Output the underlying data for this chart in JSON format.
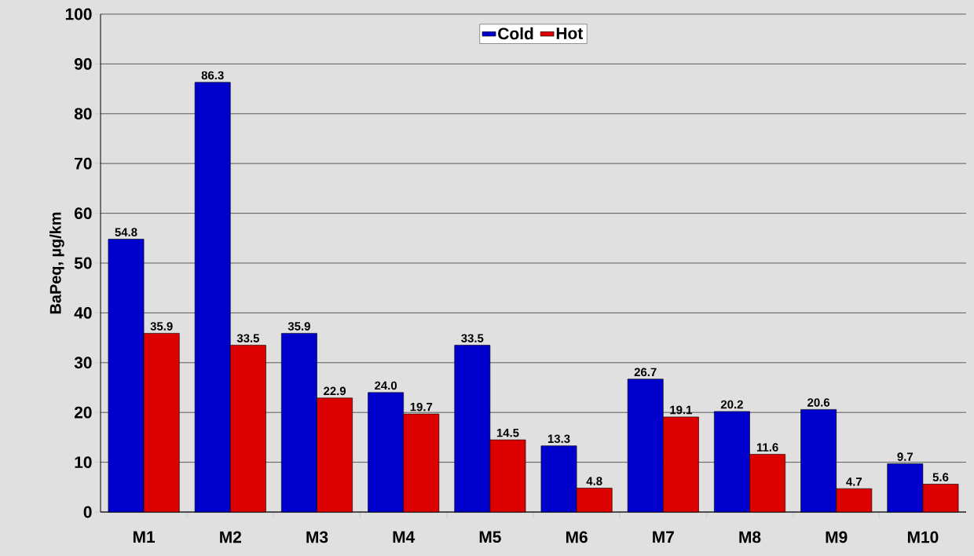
{
  "chart_data": {
    "type": "bar",
    "ylabel": "BaPeq, µg/km",
    "categories": [
      "M1",
      "M2",
      "M3",
      "M4",
      "M5",
      "M6",
      "M7",
      "M8",
      "M9",
      "M10"
    ],
    "series": [
      {
        "name": "Cold",
        "color": "#0000cc",
        "values": [
          54.8,
          86.3,
          35.9,
          24.0,
          33.5,
          13.3,
          26.7,
          20.2,
          20.6,
          9.7
        ],
        "value_labels": [
          "54.8",
          "86.3",
          "35.9",
          "24.0",
          "33.5",
          "13.3",
          "26.7",
          "20.2",
          "20.6",
          "9.7"
        ]
      },
      {
        "name": "Hot",
        "color": "#dd0000",
        "values": [
          35.9,
          33.5,
          22.9,
          19.7,
          14.5,
          4.8,
          19.1,
          11.6,
          4.7,
          5.6
        ],
        "value_labels": [
          "35.9",
          "33.5",
          "22.9",
          "19.7",
          "14.5",
          "4.8",
          "19.1",
          "11.6",
          "4.7",
          "5.6"
        ]
      }
    ],
    "ylim": [
      0,
      100
    ],
    "yticks": [
      0,
      10,
      20,
      30,
      40,
      50,
      60,
      70,
      80,
      90,
      100
    ],
    "grid": "y",
    "legend": "top"
  }
}
